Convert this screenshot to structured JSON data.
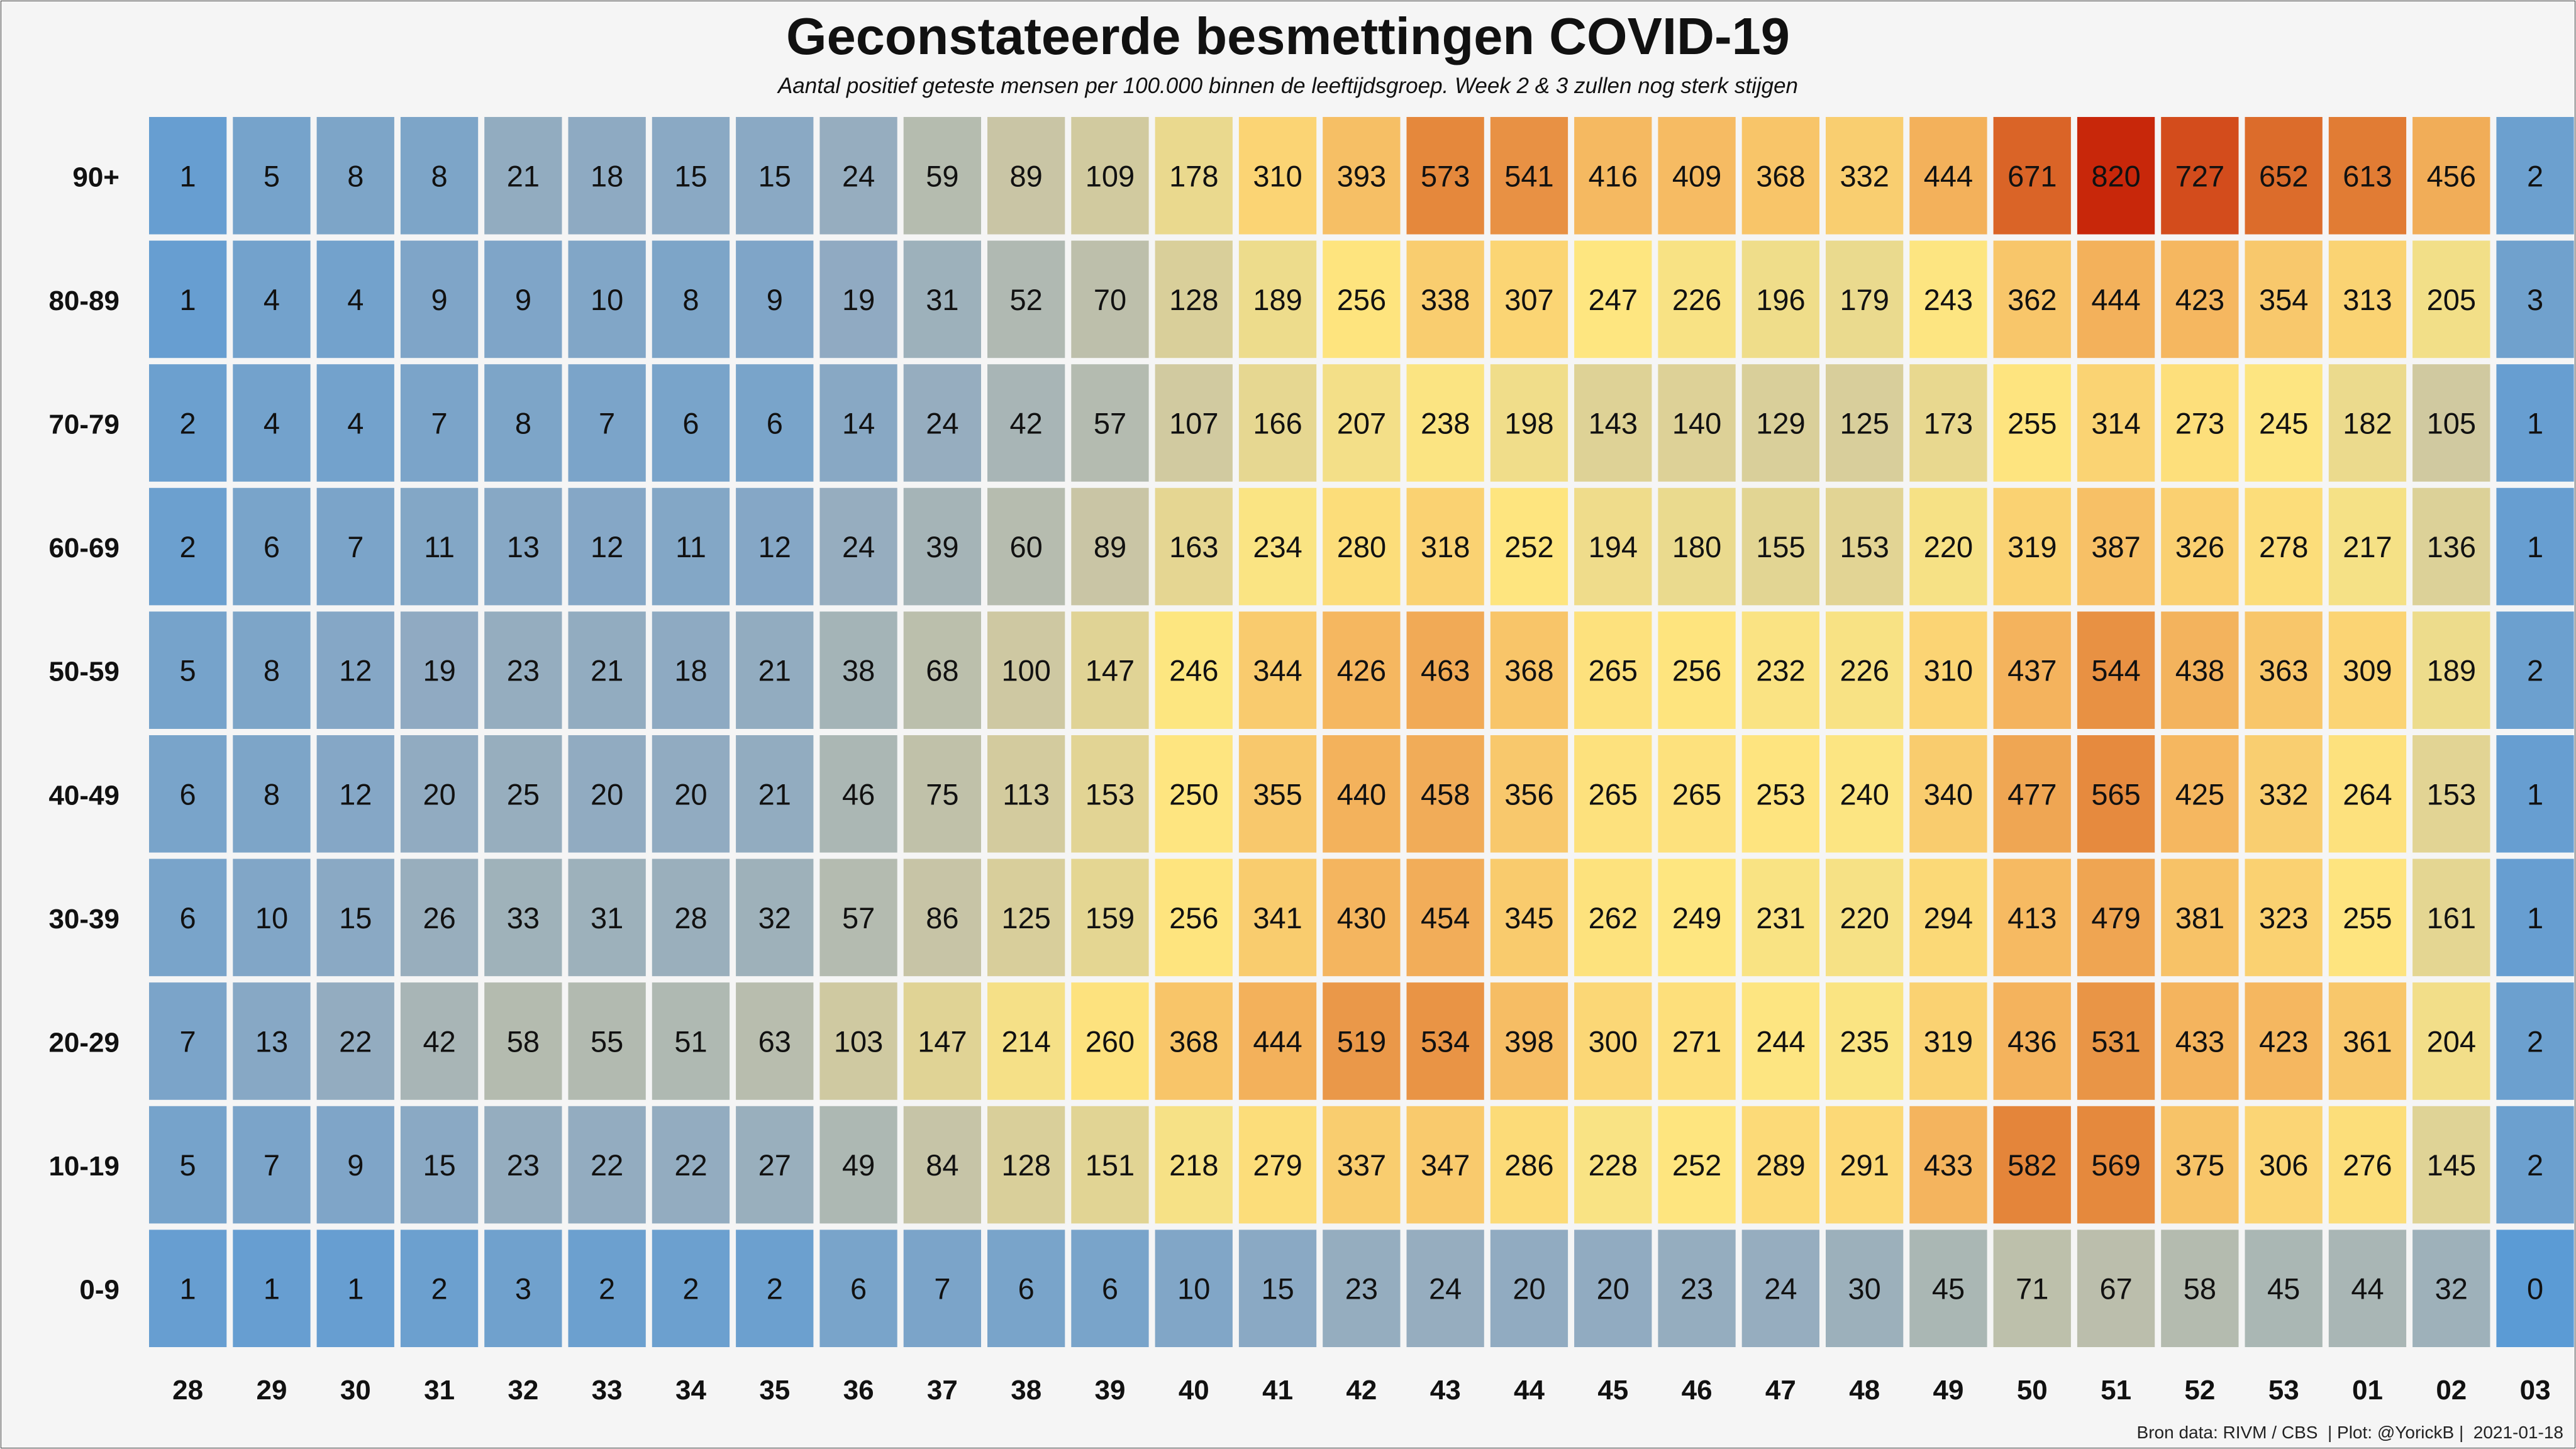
{
  "chart_data": {
    "type": "heatmap",
    "title": "Geconstateerde besmettingen COVID-19",
    "subtitle": "Aantal positief geteste mensen per 100.000 binnen de leeftijdsgroep. Week 2 & 3 zullen nog sterk stijgen",
    "x": [
      "28",
      "29",
      "30",
      "31",
      "32",
      "33",
      "34",
      "35",
      "36",
      "37",
      "38",
      "39",
      "40",
      "41",
      "42",
      "43",
      "44",
      "45",
      "46",
      "47",
      "48",
      "49",
      "50",
      "51",
      "52",
      "53",
      "01",
      "02",
      "03"
    ],
    "y": [
      "90+",
      "80-89",
      "70-79",
      "60-69",
      "50-59",
      "40-49",
      "30-39",
      "20-29",
      "10-19",
      "0-9"
    ],
    "values": [
      [
        1,
        5,
        8,
        8,
        21,
        18,
        15,
        15,
        24,
        59,
        89,
        109,
        178,
        310,
        393,
        573,
        541,
        416,
        409,
        368,
        332,
        444,
        671,
        820,
        727,
        652,
        613,
        456,
        2
      ],
      [
        1,
        4,
        4,
        9,
        9,
        10,
        8,
        9,
        19,
        31,
        52,
        70,
        128,
        189,
        256,
        338,
        307,
        247,
        226,
        196,
        179,
        243,
        362,
        444,
        423,
        354,
        313,
        205,
        3
      ],
      [
        2,
        4,
        4,
        7,
        8,
        7,
        6,
        6,
        14,
        24,
        42,
        57,
        107,
        166,
        207,
        238,
        198,
        143,
        140,
        129,
        125,
        173,
        255,
        314,
        273,
        245,
        182,
        105,
        1
      ],
      [
        2,
        6,
        7,
        11,
        13,
        12,
        11,
        12,
        24,
        39,
        60,
        89,
        163,
        234,
        280,
        318,
        252,
        194,
        180,
        155,
        153,
        220,
        319,
        387,
        326,
        278,
        217,
        136,
        1
      ],
      [
        5,
        8,
        12,
        19,
        23,
        21,
        18,
        21,
        38,
        68,
        100,
        147,
        246,
        344,
        426,
        463,
        368,
        265,
        256,
        232,
        226,
        310,
        437,
        544,
        438,
        363,
        309,
        189,
        2
      ],
      [
        6,
        8,
        12,
        20,
        25,
        20,
        20,
        21,
        46,
        75,
        113,
        153,
        250,
        355,
        440,
        458,
        356,
        265,
        265,
        253,
        240,
        340,
        477,
        565,
        425,
        332,
        264,
        153,
        1
      ],
      [
        6,
        10,
        15,
        26,
        33,
        31,
        28,
        32,
        57,
        86,
        125,
        159,
        256,
        341,
        430,
        454,
        345,
        262,
        249,
        231,
        220,
        294,
        413,
        479,
        381,
        323,
        255,
        161,
        1
      ],
      [
        7,
        13,
        22,
        42,
        58,
        55,
        51,
        63,
        103,
        147,
        214,
        260,
        368,
        444,
        519,
        534,
        398,
        300,
        271,
        244,
        235,
        319,
        436,
        531,
        433,
        423,
        361,
        204,
        2
      ],
      [
        5,
        7,
        9,
        15,
        23,
        22,
        22,
        27,
        49,
        84,
        128,
        151,
        218,
        279,
        337,
        347,
        286,
        228,
        252,
        289,
        291,
        433,
        582,
        569,
        375,
        306,
        276,
        145,
        2
      ],
      [
        1,
        1,
        1,
        2,
        3,
        2,
        2,
        2,
        6,
        7,
        6,
        6,
        10,
        15,
        23,
        24,
        20,
        20,
        23,
        24,
        30,
        45,
        71,
        67,
        58,
        45,
        44,
        32,
        0
      ]
    ],
    "color_scale": [
      "#5b9bd5",
      "#8faac2",
      "#c9c5a5",
      "#fee680",
      "#f5b760",
      "#e07a32",
      "#c8270a"
    ],
    "xlabel": "",
    "ylabel": ""
  },
  "caption": "Bron data: RIVM / CBS  | Plot: @YorickB |  2021-01-18"
}
